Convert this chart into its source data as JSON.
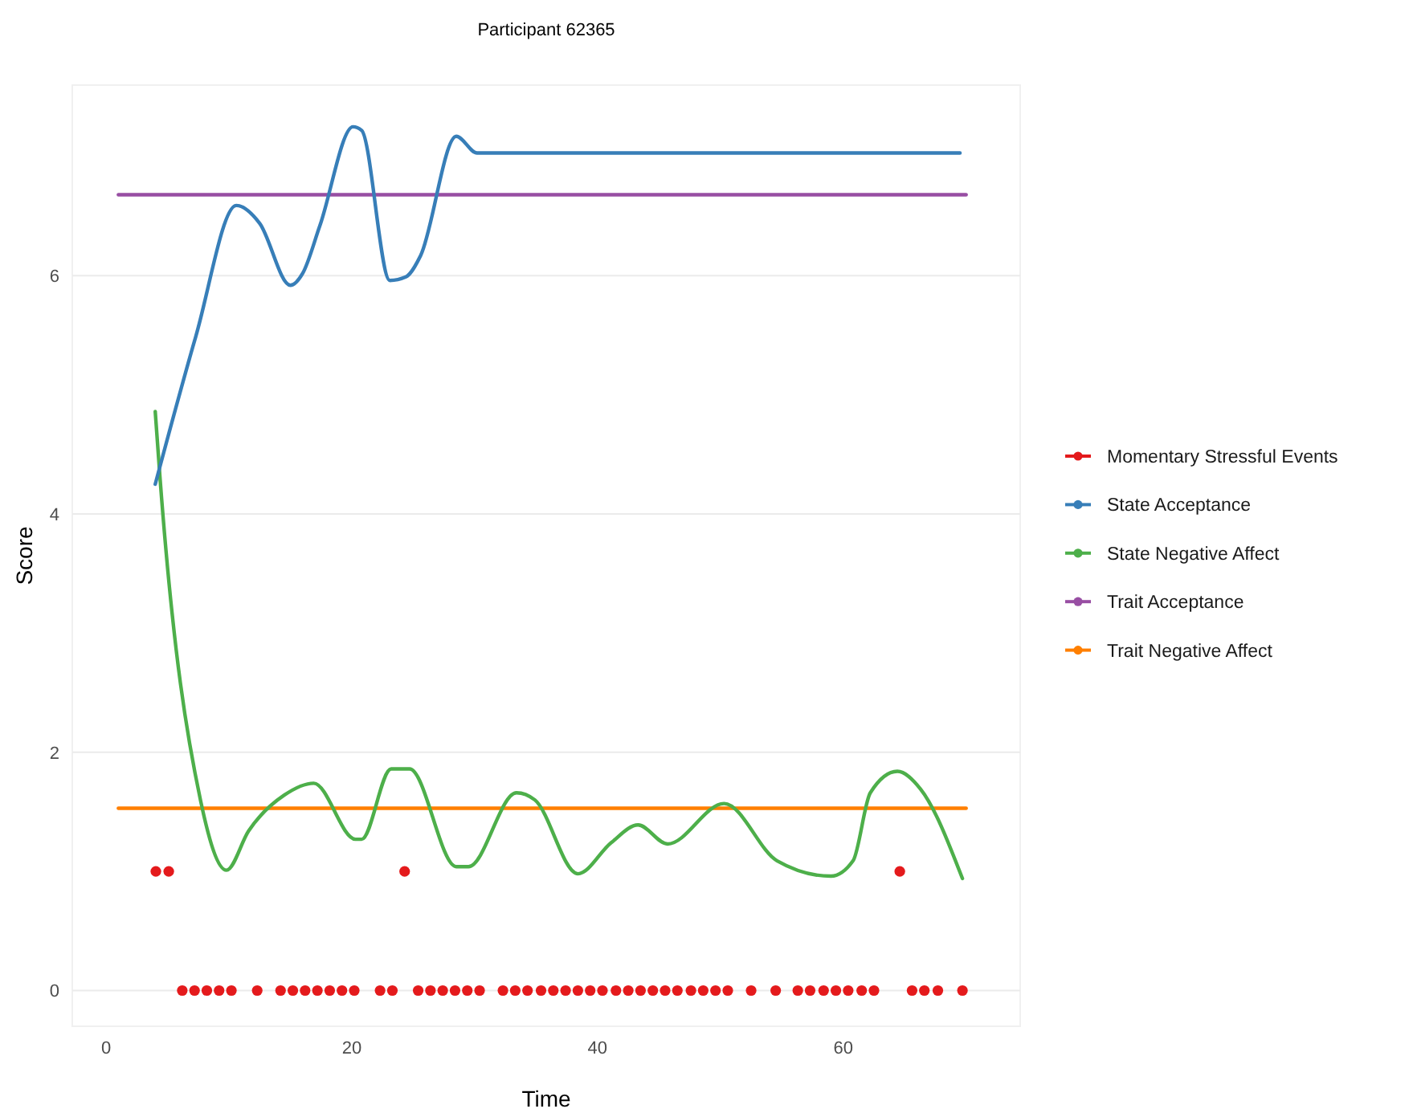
{
  "chart_data": {
    "type": "line",
    "title": "Participant 62365",
    "xlabel": "Time",
    "ylabel": "Score",
    "xlim": [
      -2.75,
      74.4
    ],
    "ylim": [
      -0.3,
      7.6
    ],
    "xticks": [
      0,
      20,
      40,
      60
    ],
    "yticks": [
      0,
      2,
      4,
      6
    ],
    "grid": "y",
    "legend": "right",
    "line_style": "solid",
    "series": [
      {
        "name": "Momentary Stressful Events",
        "type": "scatter",
        "marker": "circle",
        "color": "#e41a1c",
        "x": [
          4.05,
          5.1,
          6.2,
          7.2,
          8.2,
          9.2,
          10.2,
          12.3,
          14.2,
          15.2,
          16.2,
          17.2,
          18.2,
          19.2,
          20.2,
          22.3,
          23.3,
          24.3,
          25.4,
          26.4,
          27.4,
          28.4,
          29.4,
          30.4,
          32.3,
          33.3,
          34.3,
          35.4,
          36.4,
          37.4,
          38.4,
          39.4,
          40.4,
          41.5,
          42.5,
          43.5,
          44.5,
          45.5,
          46.5,
          47.6,
          48.6,
          49.6,
          50.6,
          52.5,
          54.5,
          56.3,
          57.3,
          58.4,
          59.4,
          60.4,
          61.5,
          62.5,
          64.6,
          65.6,
          66.6,
          67.7,
          69.7
        ],
        "values": [
          1,
          1,
          0,
          0,
          0,
          0,
          0,
          0,
          0,
          0,
          0,
          0,
          0,
          0,
          0,
          0,
          0,
          1,
          0,
          0,
          0,
          0,
          0,
          0,
          0,
          0,
          0,
          0,
          0,
          0,
          0,
          0,
          0,
          0,
          0,
          0,
          0,
          0,
          0,
          0,
          0,
          0,
          0,
          0,
          0,
          0,
          0,
          0,
          0,
          0,
          0,
          0,
          1,
          0,
          0,
          0,
          0
        ]
      },
      {
        "name": "State Acceptance",
        "color": "#377eb8",
        "x": [
          4,
          7.3,
          10.6,
          12.5,
          15,
          16,
          17.4,
          20.1,
          20.8,
          23.1,
          24.4,
          25.6,
          28.5,
          30.2,
          69.5
        ],
        "values": [
          4.25,
          5.49,
          6.59,
          6.44,
          5.92,
          6.02,
          6.42,
          7.25,
          7.22,
          5.96,
          5.99,
          6.17,
          7.17,
          7.03,
          7.03
        ]
      },
      {
        "name": "State Negative Affect",
        "color": "#4daf4a",
        "x": [
          4,
          4.4,
          7.7,
          9.8,
          11.6,
          14.5,
          16.9,
          20.3,
          20.8,
          23.2,
          24.7,
          28.5,
          29.5,
          33.4,
          34.9,
          38.4,
          41.1,
          43.3,
          45.7,
          50.3,
          54.6,
          59,
          60.8,
          62.2,
          64.4,
          66.3,
          69.7
        ],
        "values": [
          4.86,
          4.29,
          1.59,
          1.01,
          1.34,
          1.64,
          1.74,
          1.27,
          1.27,
          1.86,
          1.86,
          1.04,
          1.04,
          1.66,
          1.6,
          0.98,
          1.24,
          1.39,
          1.23,
          1.57,
          1.09,
          0.96,
          1.09,
          1.66,
          1.84,
          1.69,
          0.94
        ]
      },
      {
        "name": "Trait Acceptance",
        "color": "#984ea3",
        "x": [
          1,
          70
        ],
        "values": [
          6.68,
          6.68
        ]
      },
      {
        "name": "Trait Negative Affect",
        "color": "#ff7f00",
        "x": [
          1,
          70
        ],
        "values": [
          1.53,
          1.53
        ]
      }
    ]
  }
}
